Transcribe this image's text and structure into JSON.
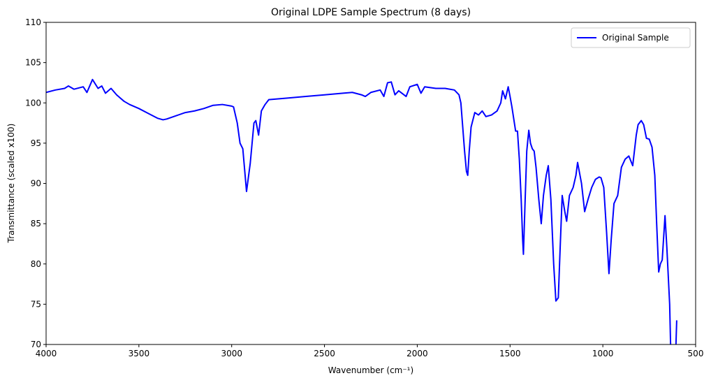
{
  "chart_data": {
    "type": "line",
    "title": "Original LDPE Sample Spectrum (8 days)",
    "x_label": "Wavenumber (cm⁻¹)",
    "y_label": "Transmittance (scaled x100)",
    "x": [
      4000,
      3950,
      3900,
      3880,
      3850,
      3800,
      3780,
      3750,
      3720,
      3700,
      3680,
      3650,
      3620,
      3600,
      3580,
      3550,
      3500,
      3450,
      3400,
      3370,
      3350,
      3300,
      3250,
      3200,
      3150,
      3100,
      3050,
      3000,
      2990,
      2970,
      2955,
      2940,
      2920,
      2900,
      2880,
      2870,
      2855,
      2840,
      2820,
      2800,
      2700,
      2600,
      2500,
      2400,
      2350,
      2300,
      2280,
      2250,
      2200,
      2180,
      2160,
      2140,
      2120,
      2100,
      2060,
      2040,
      2000,
      1980,
      1960,
      1900,
      1850,
      1800,
      1775,
      1765,
      1755,
      1745,
      1735,
      1728,
      1720,
      1710,
      1690,
      1670,
      1650,
      1630,
      1600,
      1570,
      1550,
      1540,
      1525,
      1510,
      1500,
      1490,
      1480,
      1470,
      1460,
      1450,
      1440,
      1432,
      1428,
      1420,
      1410,
      1399,
      1390,
      1380,
      1370,
      1360,
      1345,
      1332,
      1320,
      1305,
      1294,
      1280,
      1265,
      1253,
      1240,
      1230,
      1219,
      1205,
      1195,
      1180,
      1160,
      1145,
      1136,
      1115,
      1098,
      1080,
      1060,
      1040,
      1020,
      1010,
      995,
      980,
      967,
      955,
      940,
      920,
      900,
      880,
      860,
      839,
      820,
      810,
      793,
      780,
      765,
      750,
      735,
      720,
      710,
      699,
      690,
      680,
      665,
      655,
      640,
      635,
      620,
      610,
      606,
      602
    ],
    "series": [
      {
        "name": "Original Sample",
        "color": "#0000ff",
        "values": [
          101.3,
          101.6,
          101.8,
          102.1,
          101.7,
          102.0,
          101.3,
          102.9,
          101.8,
          102.1,
          101.2,
          101.8,
          101.0,
          100.6,
          100.2,
          99.8,
          99.3,
          98.7,
          98.1,
          97.9,
          98.0,
          98.4,
          98.8,
          99.0,
          99.3,
          99.7,
          99.8,
          99.6,
          99.5,
          97.5,
          95.0,
          94.3,
          89.0,
          92.5,
          97.5,
          97.8,
          96.0,
          99.0,
          99.8,
          100.4,
          100.6,
          100.8,
          101.0,
          101.2,
          101.3,
          101.0,
          100.8,
          101.3,
          101.6,
          100.8,
          102.5,
          102.6,
          101.0,
          101.5,
          100.8,
          102.0,
          102.3,
          101.2,
          102.0,
          101.8,
          101.8,
          101.6,
          101.0,
          100.0,
          97.0,
          94.0,
          91.5,
          91.0,
          94.0,
          97.0,
          98.8,
          98.5,
          99.0,
          98.3,
          98.5,
          99.0,
          100.0,
          101.5,
          100.5,
          102.0,
          100.8,
          99.5,
          98.0,
          96.5,
          96.5,
          93.0,
          88.0,
          83.0,
          81.2,
          87.0,
          94.0,
          96.6,
          95.0,
          94.3,
          94.0,
          92.0,
          88.0,
          85.0,
          88.5,
          91.0,
          92.2,
          88.0,
          80.0,
          75.4,
          75.8,
          82.0,
          88.5,
          86.5,
          85.3,
          88.5,
          89.5,
          91.0,
          92.6,
          90.0,
          86.5,
          88.0,
          89.5,
          90.5,
          90.8,
          90.7,
          89.5,
          84.0,
          78.8,
          83.0,
          87.5,
          88.5,
          92.0,
          93.0,
          93.4,
          92.2,
          96.0,
          97.3,
          97.8,
          97.3,
          95.6,
          95.5,
          94.5,
          91.0,
          85.0,
          79.0,
          80.0,
          80.5,
          86.0,
          82.0,
          75.0,
          70.0,
          66.0,
          66.0,
          70.0,
          73.0
        ]
      }
    ],
    "xlim": [
      4000,
      500
    ],
    "xticks": [
      4000,
      3500,
      3000,
      2500,
      2000,
      1500,
      1000,
      500
    ],
    "ylim": [
      70,
      110
    ],
    "yticks": [
      70,
      75,
      80,
      85,
      90,
      95,
      100,
      105,
      110
    ],
    "legend": "upper right",
    "grid": false
  }
}
